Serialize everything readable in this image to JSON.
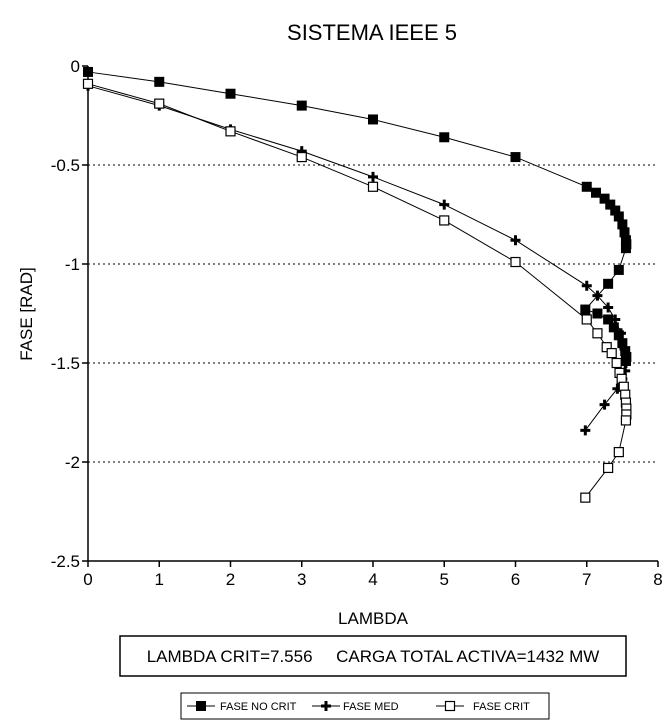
{
  "chart_data": {
    "type": "line",
    "title": "SISTEMA IEEE 5",
    "xlabel": "LAMBDA",
    "ylabel": "FASE [RAD]",
    "xlim": [
      0,
      8
    ],
    "ylim": [
      -2.5,
      0
    ],
    "x_ticks": [
      "0",
      "1",
      "2",
      "3",
      "4",
      "5",
      "6",
      "7",
      "8"
    ],
    "y_ticks": [
      "0",
      "-0.5",
      "-1",
      "-1.5",
      "-2",
      "-2.5"
    ],
    "grid": "horizontal dotted",
    "info_box": "LAMBDA CRIT=7.556     CARGA TOTAL ACTIVA=1432 MW",
    "legend_placement": "bottom",
    "series": [
      {
        "name": "FASE NO CRIT",
        "marker": "filled-square",
        "color": "#000000",
        "points": [
          [
            0,
            -0.03
          ],
          [
            1,
            -0.08
          ],
          [
            2,
            -0.14
          ],
          [
            3,
            -0.2
          ],
          [
            4,
            -0.27
          ],
          [
            5,
            -0.36
          ],
          [
            6,
            -0.46
          ],
          [
            7.0,
            -0.61
          ],
          [
            7.13,
            -0.64
          ],
          [
            7.25,
            -0.67
          ],
          [
            7.33,
            -0.7
          ],
          [
            7.4,
            -0.73
          ],
          [
            7.45,
            -0.76
          ],
          [
            7.5,
            -0.8
          ],
          [
            7.53,
            -0.84
          ],
          [
            7.55,
            -0.88
          ],
          [
            7.556,
            -0.9
          ],
          [
            7.55,
            -0.92
          ],
          [
            7.45,
            -1.03
          ],
          [
            7.3,
            -1.1
          ],
          [
            6.98,
            -1.23
          ],
          [
            7.15,
            -1.25
          ],
          [
            7.3,
            -1.28
          ],
          [
            7.38,
            -1.32
          ],
          [
            7.45,
            -1.36
          ],
          [
            7.5,
            -1.4
          ],
          [
            7.54,
            -1.44
          ],
          [
            7.556,
            -1.47
          ],
          [
            7.55,
            -1.49
          ]
        ]
      },
      {
        "name": "FASE MED",
        "marker": "plus",
        "color": "#000000",
        "points": [
          [
            0,
            -0.1
          ],
          [
            1,
            -0.2
          ],
          [
            2,
            -0.32
          ],
          [
            3,
            -0.43
          ],
          [
            4,
            -0.56
          ],
          [
            5,
            -0.7
          ],
          [
            6,
            -0.88
          ],
          [
            7.0,
            -1.11
          ],
          [
            7.15,
            -1.16
          ],
          [
            7.3,
            -1.22
          ],
          [
            7.4,
            -1.28
          ],
          [
            7.48,
            -1.35
          ],
          [
            7.53,
            -1.43
          ],
          [
            7.55,
            -1.5
          ],
          [
            7.54,
            -1.54
          ],
          [
            7.5,
            -1.58
          ],
          [
            7.43,
            -1.63
          ],
          [
            7.25,
            -1.71
          ],
          [
            6.98,
            -1.84
          ]
        ]
      },
      {
        "name": "FASE CRIT",
        "marker": "hollow-square",
        "color": "#000000",
        "points": [
          [
            0,
            -0.09
          ],
          [
            1,
            -0.19
          ],
          [
            2,
            -0.33
          ],
          [
            3,
            -0.46
          ],
          [
            4,
            -0.61
          ],
          [
            5,
            -0.78
          ],
          [
            6,
            -0.99
          ],
          [
            7.0,
            -1.28
          ],
          [
            7.15,
            -1.35
          ],
          [
            7.28,
            -1.42
          ],
          [
            7.35,
            -1.45
          ],
          [
            7.42,
            -1.5
          ],
          [
            7.46,
            -1.55
          ],
          [
            7.49,
            -1.58
          ],
          [
            7.52,
            -1.62
          ],
          [
            7.54,
            -1.66
          ],
          [
            7.55,
            -1.7
          ],
          [
            7.556,
            -1.73
          ],
          [
            7.556,
            -1.76
          ],
          [
            7.55,
            -1.79
          ],
          [
            7.45,
            -1.95
          ],
          [
            7.3,
            -2.03
          ],
          [
            6.98,
            -2.18
          ]
        ]
      }
    ]
  }
}
